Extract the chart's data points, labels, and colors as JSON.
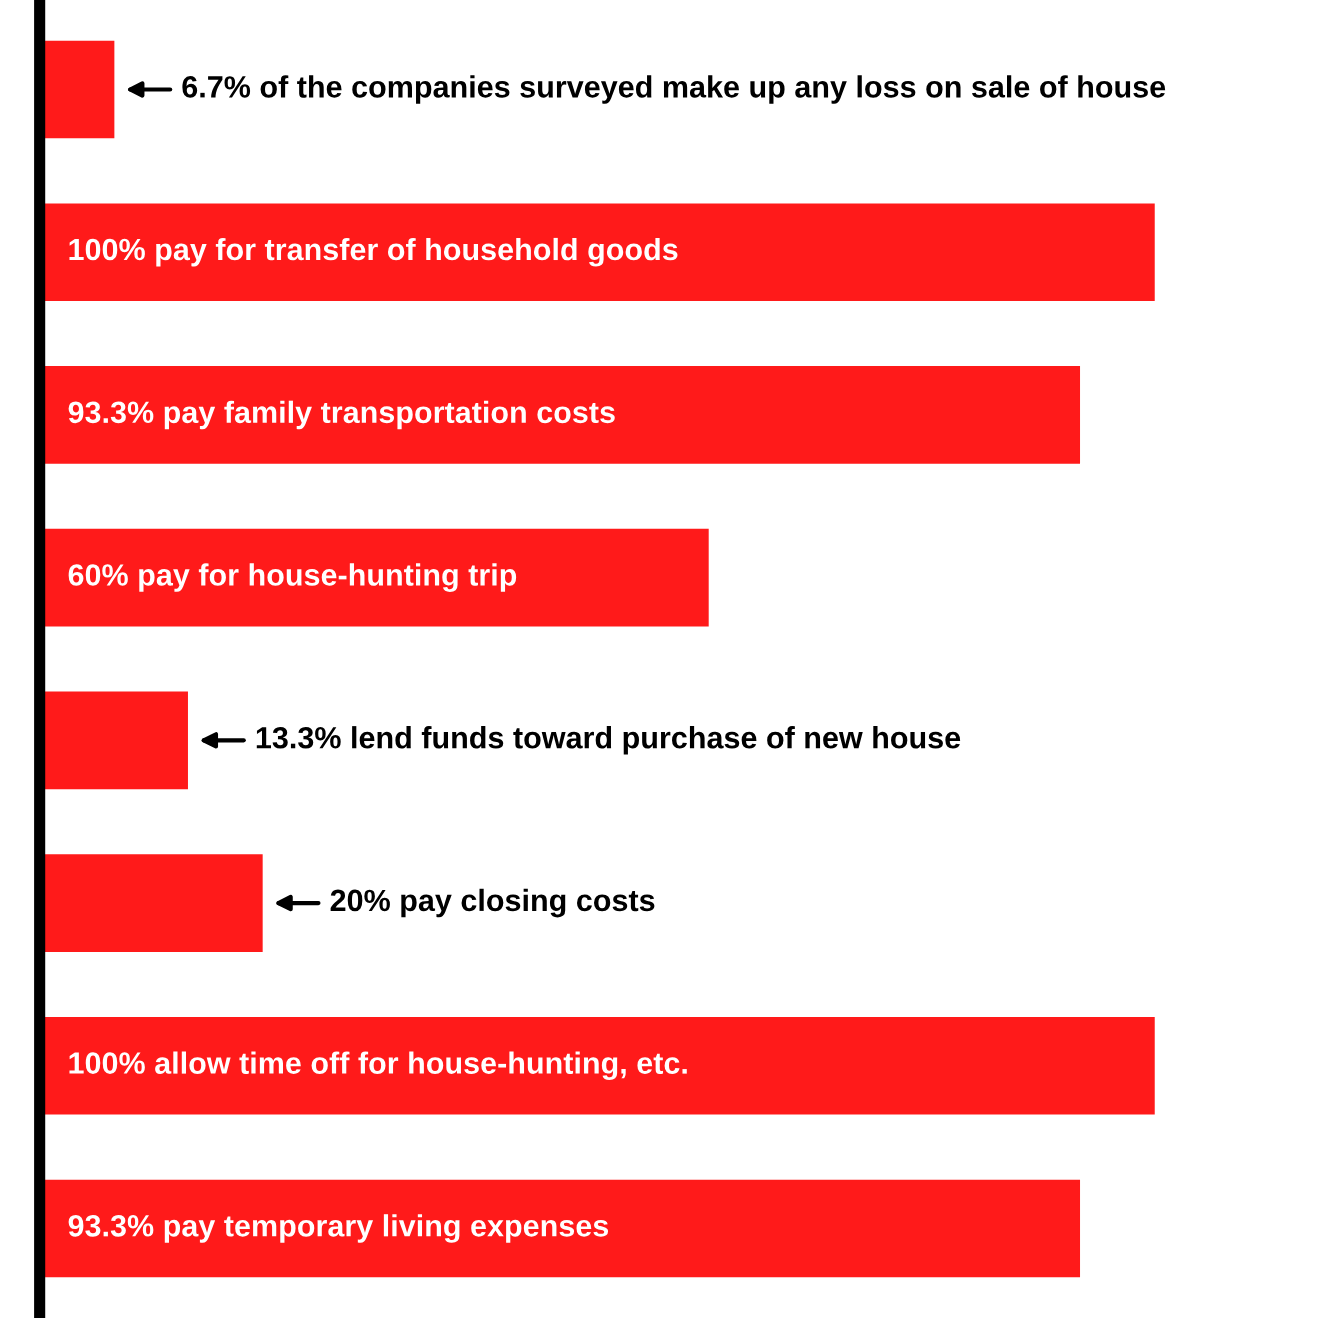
{
  "chart_data": {
    "type": "bar",
    "orientation": "horizontal",
    "categories": [
      null,
      null,
      null,
      null,
      null,
      null,
      null,
      null
    ],
    "values": [
      6.7,
      100,
      93.3,
      60,
      13.3,
      20,
      100,
      93.3
    ],
    "value_labels": [
      "6.7% of the companies surveyed make up any loss on sale of house",
      "100% pay for transfer of household goods",
      "93.3% pay family transportation costs",
      "60% pay for house-hunting trip",
      "13.3% lend funds toward purchase of new house",
      "20% pay closing costs",
      "100% allow time off for house-hunting, etc.",
      "93.3% pay temporary living expenses"
    ],
    "color": "#ff1a1a",
    "tick_labels": false
  }
}
